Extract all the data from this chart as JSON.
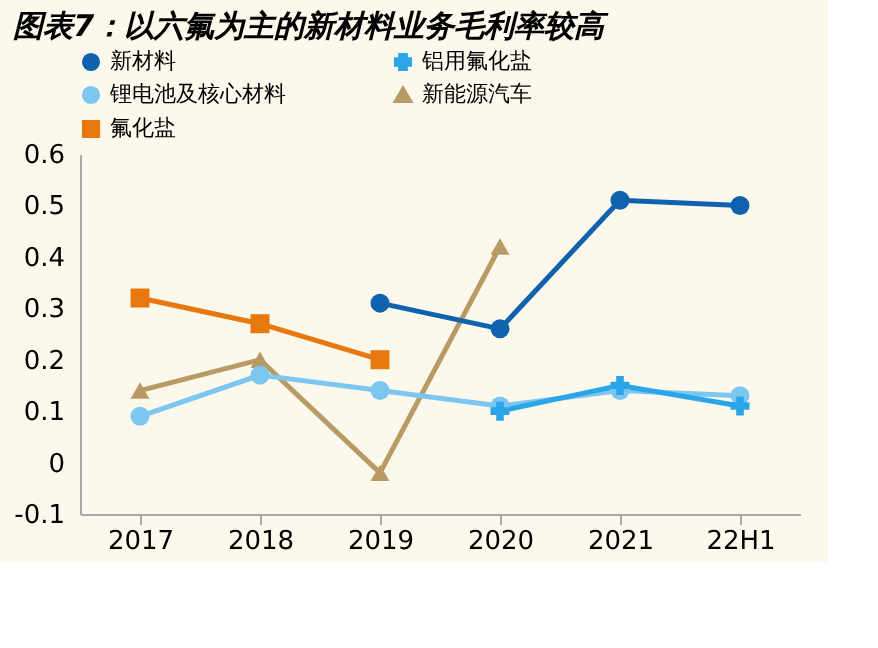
{
  "chart_data": {
    "type": "line",
    "title": "图表7：以六氟为主的新材料业务毛利率较高",
    "categories": [
      "2017",
      "2018",
      "2019",
      "2020",
      "2021",
      "22H1"
    ],
    "series": [
      {
        "name": "新材料",
        "color": "#0f62ae",
        "marker": "circle",
        "values": [
          null,
          null,
          0.31,
          0.26,
          0.51,
          0.5
        ]
      },
      {
        "name": "铝用氟化盐",
        "color": "#2aa6e8",
        "marker": "cross",
        "values": [
          null,
          null,
          null,
          0.1,
          0.15,
          0.11
        ]
      },
      {
        "name": "锂电池及核心材料",
        "color": "#7cc6f2",
        "marker": "circle",
        "values": [
          0.09,
          0.17,
          0.14,
          0.11,
          0.14,
          0.13
        ]
      },
      {
        "name": "新能源汽车",
        "color": "#b89a64",
        "marker": "triangle",
        "values": [
          0.14,
          0.2,
          -0.02,
          0.42,
          null,
          null
        ]
      },
      {
        "name": "氟化盐",
        "color": "#e8780e",
        "marker": "square",
        "values": [
          0.32,
          0.27,
          0.2,
          null,
          null,
          null
        ]
      }
    ],
    "ylim": [
      -0.1,
      0.6
    ],
    "yticks": [
      -0.1,
      0,
      0.1,
      0.2,
      0.3,
      0.4,
      0.5,
      0.6
    ],
    "grid": false,
    "legend": "top"
  }
}
